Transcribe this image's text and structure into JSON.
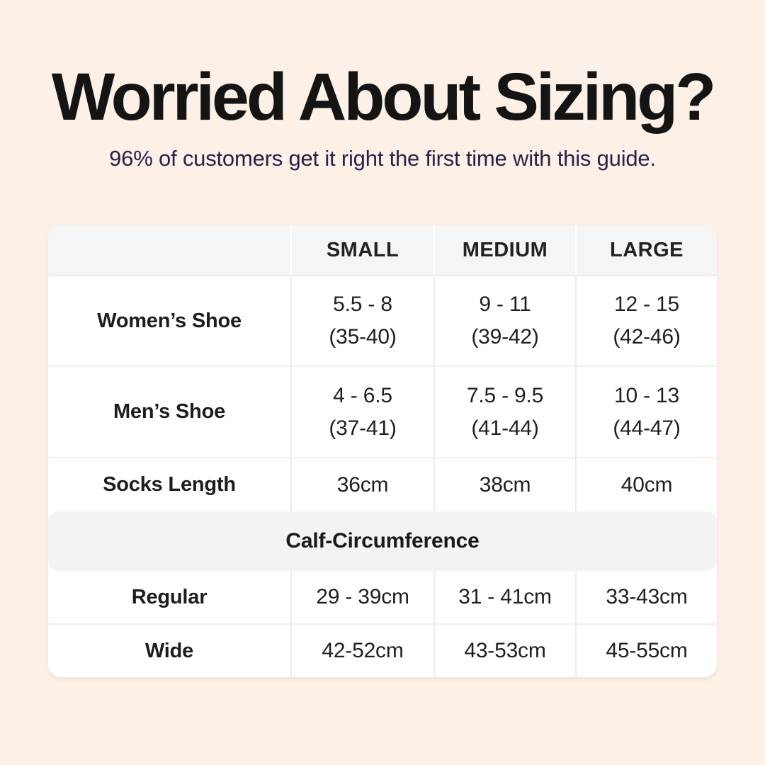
{
  "header": {
    "title": "Worried About Sizing?",
    "subtitle": "96% of customers get it right the first time with this guide."
  },
  "table": {
    "column_headers": [
      "SMALL",
      "MEDIUM",
      "LARGE"
    ],
    "rows": [
      {
        "label": "Women’s Shoe",
        "values": [
          [
            "5.5 - 8",
            "(35-40)"
          ],
          [
            "9 - 11",
            "(39-42)"
          ],
          [
            "12 - 15",
            "(42-46)"
          ]
        ]
      },
      {
        "label": "Men’s Shoe",
        "values": [
          [
            "4 - 6.5",
            "(37-41)"
          ],
          [
            "7.5 - 9.5",
            "(41-44)"
          ],
          [
            "10 - 13",
            "(44-47)"
          ]
        ]
      },
      {
        "label": "Socks Length",
        "values": [
          [
            "36cm"
          ],
          [
            "38cm"
          ],
          [
            "40cm"
          ]
        ]
      }
    ],
    "calf_section": {
      "title": "Calf-Circumference",
      "rows": [
        {
          "label": "Regular",
          "values": [
            [
              "29 - 39cm"
            ],
            [
              "31 - 41cm"
            ],
            [
              "33-43cm"
            ]
          ]
        },
        {
          "label": "Wide",
          "values": [
            [
              "42-52cm"
            ],
            [
              "43-53cm"
            ],
            [
              "45-55cm"
            ]
          ]
        }
      ]
    }
  },
  "colors": {
    "background": "#fdf1e7",
    "card": "#ffffff",
    "header_row": "#f5f5f6",
    "section_band": "#f3f3f4",
    "divider": "#ececec",
    "title_text": "#141414",
    "subtitle_text": "#262349",
    "table_text": "#1f1f1f"
  }
}
